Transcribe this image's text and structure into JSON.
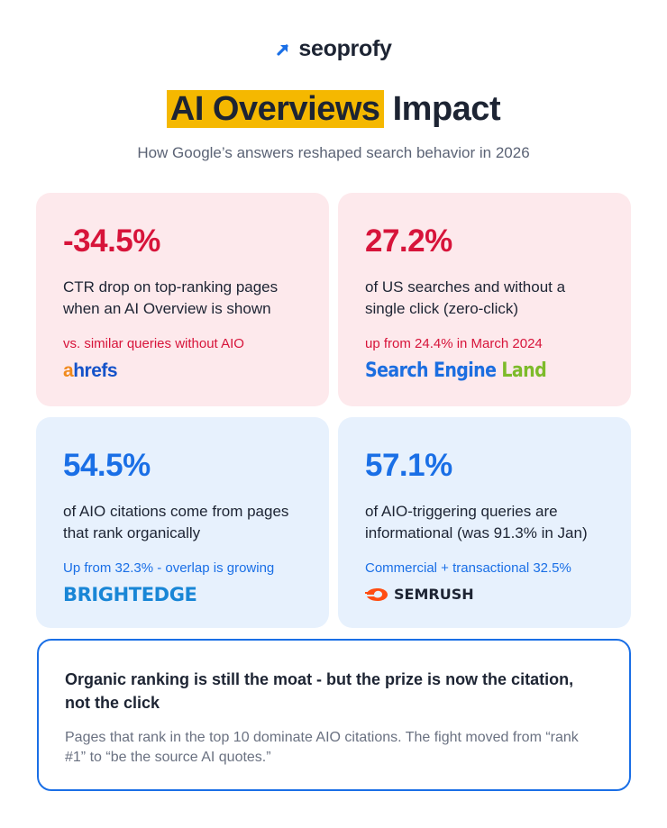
{
  "brand": {
    "name": "seoprofy",
    "accent": "#1a6fe6",
    "icon": "arrow-up-right-icon"
  },
  "header": {
    "title_highlight": "AI Overviews",
    "title_rest": " Impact",
    "subtitle": "How Google’s answers reshaped search behavior in 2026"
  },
  "colors": {
    "red_card_bg": "#fde9ec",
    "blue_card_bg": "#e7f1fd",
    "red_text": "#d7143a",
    "blue_text": "#1a6fe6",
    "highlight": "#f5b800"
  },
  "stats": [
    {
      "value": "-34.5%",
      "description": "CTR drop on top-ranking pages when an AI Overview is shown",
      "note": "vs. similar queries without AIO",
      "source": "ahrefs"
    },
    {
      "value": "27.2%",
      "description": "of US searches and without a single click (zero-click)",
      "note": "up from 24.4% in March 2024",
      "source": "Search Engine Land"
    },
    {
      "value": "54.5%",
      "description": "of AIO citations come from pages that rank organically",
      "note": "Up from 32.3% - overlap is growing",
      "source": "BRIGHTEDGE"
    },
    {
      "value": "57.1%",
      "description": "of AIO-triggering queries are informational (was 91.3% in Jan)",
      "note": "Commercial + transactional 32.5%",
      "source": "SEMRUSH"
    }
  ],
  "sources": {
    "ahrefs_a": "a",
    "ahrefs_rest": "hrefs",
    "sel_1": "Search",
    "sel_2": "Engine",
    "sel_3": "Land",
    "brightedge": "BRIGHTEDGE",
    "semrush": "SEMRUSH"
  },
  "takeaway": {
    "heading": "Organic ranking is still the moat - but the prize is now the citation, not the click",
    "body": "Pages that rank in the top 10 dominate AIO citations. The fight moved from “rank #1” to “be the source AI quotes.”"
  }
}
